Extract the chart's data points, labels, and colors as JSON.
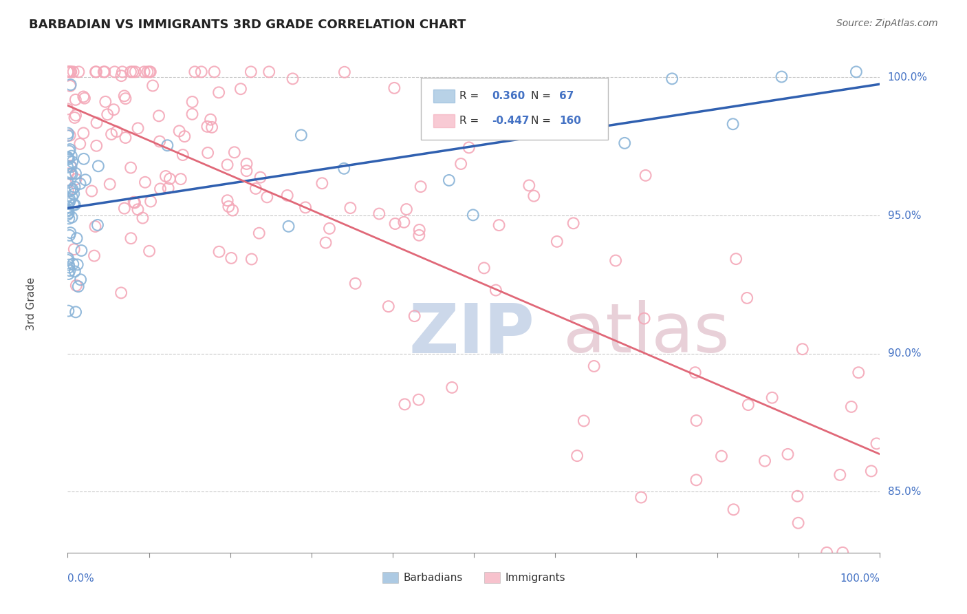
{
  "title": "BARBADIAN VS IMMIGRANTS 3RD GRADE CORRELATION CHART",
  "source": "Source: ZipAtlas.com",
  "ylabel": "3rd Grade",
  "blue_color": "#8ab4d8",
  "pink_color": "#f4a8b8",
  "blue_line_color": "#3060b0",
  "pink_line_color": "#e06878",
  "legend_blue_r_val": "0.360",
  "legend_blue_n_val": "67",
  "legend_pink_r_val": "-0.447",
  "legend_pink_n_val": "160",
  "xlim": [
    0.0,
    1.0
  ],
  "ylim": [
    0.828,
    1.008
  ],
  "yticks": [
    0.85,
    0.9,
    0.95,
    1.0
  ],
  "ytick_labels": [
    "85.0%",
    "90.0%",
    "95.0%",
    "100.0%"
  ],
  "xticks": [
    0.0,
    0.1,
    0.2,
    0.3,
    0.4,
    0.5,
    0.6,
    0.7,
    0.8,
    0.9,
    1.0
  ]
}
